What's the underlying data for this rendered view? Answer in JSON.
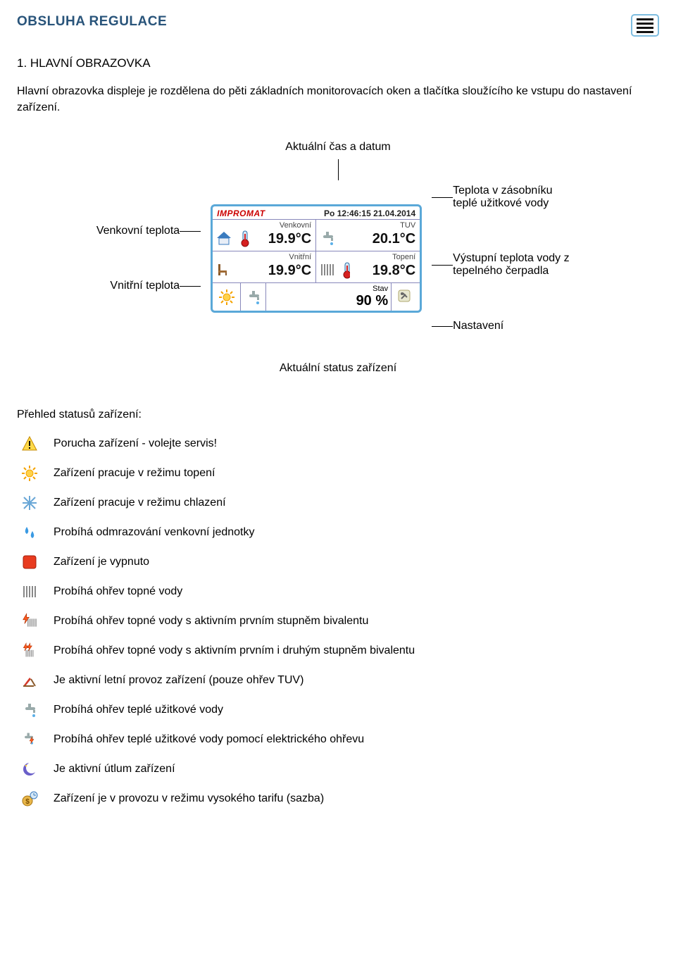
{
  "colors": {
    "title": "#29547a",
    "accent_border": "#7ebde0",
    "device_border": "#5aa8d8",
    "brand_red": "#cc0000",
    "text": "#000000"
  },
  "header": {
    "title": "OBSLUHA REGULACE",
    "subtitle": "1. HLAVNÍ OBRAZOVKA",
    "intro": "Hlavní obrazovka displeje je rozdělena do pěti základních monitorovacích oken a tlačítka sloužícího ke vstupu do nastavení zařízení."
  },
  "labels": {
    "top": "Aktuální čas a datum",
    "left_outdoor": "Venkovní teplota",
    "left_indoor": "Vnitřní teplota",
    "right_tank": "Teplota v zásobníku teplé užitkové vody",
    "right_pump": "Výstupní teplota vody z tepelného čerpadla",
    "right_settings": "Nastavení",
    "status_caption": "Aktuální status zařízení"
  },
  "device": {
    "brand": "IMPROMAT",
    "datetime": "Po 12:46:15 21.04.2014",
    "panels": {
      "venkovni": {
        "label": "Venkovní",
        "value": "19.9°C"
      },
      "tuv": {
        "label": "TUV",
        "value": "20.1°C"
      },
      "vnitrni": {
        "label": "Vnitřní",
        "value": "19.9°C"
      },
      "topeni": {
        "label": "Topení",
        "value": "19.8°C"
      }
    },
    "stav": {
      "label": "Stav",
      "value": "90 %"
    }
  },
  "status_list": {
    "title": "Přehled statusů zařízení:",
    "items": [
      {
        "icon": "warning",
        "text": "Porucha zařízení - volejte servis!"
      },
      {
        "icon": "sun",
        "text": "Zařízení pracuje v režimu topení"
      },
      {
        "icon": "snow",
        "text": "Zařízení pracuje v režimu chlazení"
      },
      {
        "icon": "defrost",
        "text": "Probíhá odmrazování venkovní jednotky"
      },
      {
        "icon": "off",
        "text": "Zařízení je vypnuto"
      },
      {
        "icon": "radiator",
        "text": "Probíhá ohřev topné vody"
      },
      {
        "icon": "radiator_b1",
        "text": "Probíhá ohřev topné vody s aktivním prvním stupněm bivalentu"
      },
      {
        "icon": "radiator_b2",
        "text": "Probíhá ohřev topné vody s aktivním prvním i druhým stupněm bivalentu"
      },
      {
        "icon": "summer",
        "text": "Je aktivní letní provoz zařízení (pouze ohřev TUV)"
      },
      {
        "icon": "tap",
        "text": "Probíhá ohřev teplé užitkové vody"
      },
      {
        "icon": "tap_elec",
        "text": "Probíhá ohřev teplé užitkové vody pomocí elektrického ohřevu"
      },
      {
        "icon": "moon",
        "text": "Je aktivní útlum zařízení"
      },
      {
        "icon": "tariff",
        "text": "Zařízení je v provozu v režimu vysokého tarifu (sazba)"
      }
    ]
  }
}
